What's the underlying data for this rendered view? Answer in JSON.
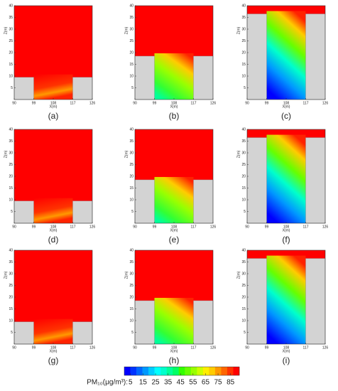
{
  "figure": {
    "x_label": "X(m)",
    "y_label": "Z(m)",
    "xlim": [
      90,
      126
    ],
    "ylim": [
      0,
      40
    ],
    "xticks": [
      90,
      99,
      108,
      117,
      126
    ],
    "yticks": [
      5,
      10,
      15,
      20,
      25,
      30,
      35,
      40
    ],
    "street": [
      99,
      117
    ],
    "panels": [
      {
        "label": "(a)",
        "building_height": 9.5
      },
      {
        "label": "(b)",
        "building_height": 18.5
      },
      {
        "label": "(c)",
        "building_height": 36.5
      },
      {
        "label": "(d)",
        "building_height": 9.5
      },
      {
        "label": "(e)",
        "building_height": 18.5
      },
      {
        "label": "(f)",
        "building_height": 36.5
      },
      {
        "label": "(g)",
        "building_height": 9.5
      },
      {
        "label": "(h)",
        "building_height": 18.5
      },
      {
        "label": "(i)",
        "building_height": 36.5
      }
    ],
    "colorbar": {
      "label": "PM₁₀(μg/m³):",
      "range": [
        0,
        92
      ],
      "ticks": [
        5,
        15,
        25,
        35,
        45,
        55,
        65,
        75,
        85
      ],
      "colors": [
        "#0000ff",
        "#0033ff",
        "#0066ff",
        "#0099ff",
        "#00ccff",
        "#00ffff",
        "#00ffcc",
        "#00ff99",
        "#00ff66",
        "#33ff00",
        "#66ff00",
        "#99ff00",
        "#ccff00",
        "#ffee00",
        "#ffcc00",
        "#ff9900",
        "#ff6600",
        "#ff3300",
        "#ff0000"
      ]
    }
  }
}
